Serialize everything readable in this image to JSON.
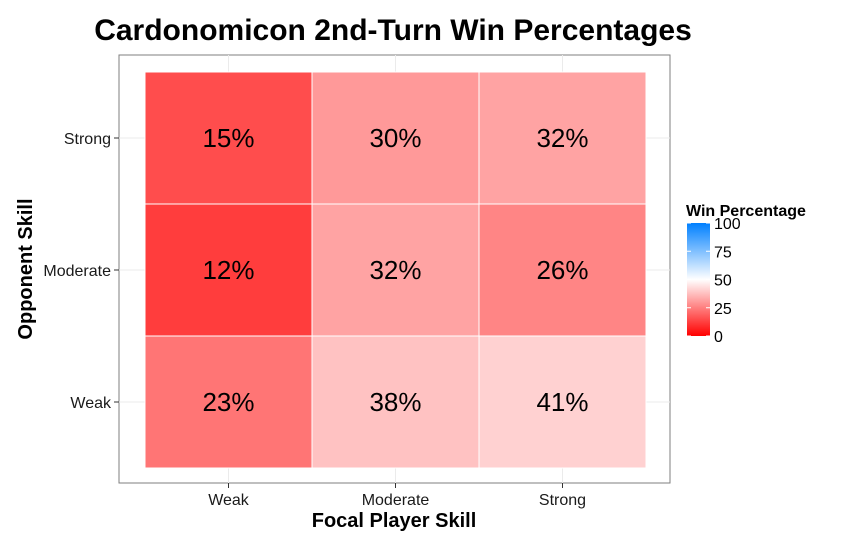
{
  "chart_data": {
    "type": "heatmap",
    "title": "Cardonomicon 2nd-Turn Win Percentages",
    "xlabel": "Focal Player Skill",
    "ylabel": "Opponent Skill",
    "x_categories": [
      "Weak",
      "Moderate",
      "Strong"
    ],
    "y_categories": [
      "Weak",
      "Moderate",
      "Strong"
    ],
    "cells": [
      {
        "x": "Weak",
        "y": "Strong",
        "value": 15,
        "label": "15%"
      },
      {
        "x": "Moderate",
        "y": "Strong",
        "value": 30,
        "label": "30%"
      },
      {
        "x": "Strong",
        "y": "Strong",
        "value": 32,
        "label": "32%"
      },
      {
        "x": "Weak",
        "y": "Moderate",
        "value": 12,
        "label": "12%"
      },
      {
        "x": "Moderate",
        "y": "Moderate",
        "value": 32,
        "label": "32%"
      },
      {
        "x": "Strong",
        "y": "Moderate",
        "value": 26,
        "label": "26%"
      },
      {
        "x": "Weak",
        "y": "Weak",
        "value": 23,
        "label": "23%"
      },
      {
        "x": "Moderate",
        "y": "Weak",
        "value": 38,
        "label": "38%"
      },
      {
        "x": "Strong",
        "y": "Weak",
        "value": 41,
        "label": "41%"
      }
    ],
    "legend": {
      "title": "Win Percentage",
      "ticks": [
        "0",
        "25",
        "50",
        "75",
        "100"
      ],
      "range": [
        0,
        100
      ],
      "colors": {
        "low": "#ff0000",
        "mid": "#ffffff",
        "high": "#0080ff"
      }
    },
    "grid": true
  }
}
